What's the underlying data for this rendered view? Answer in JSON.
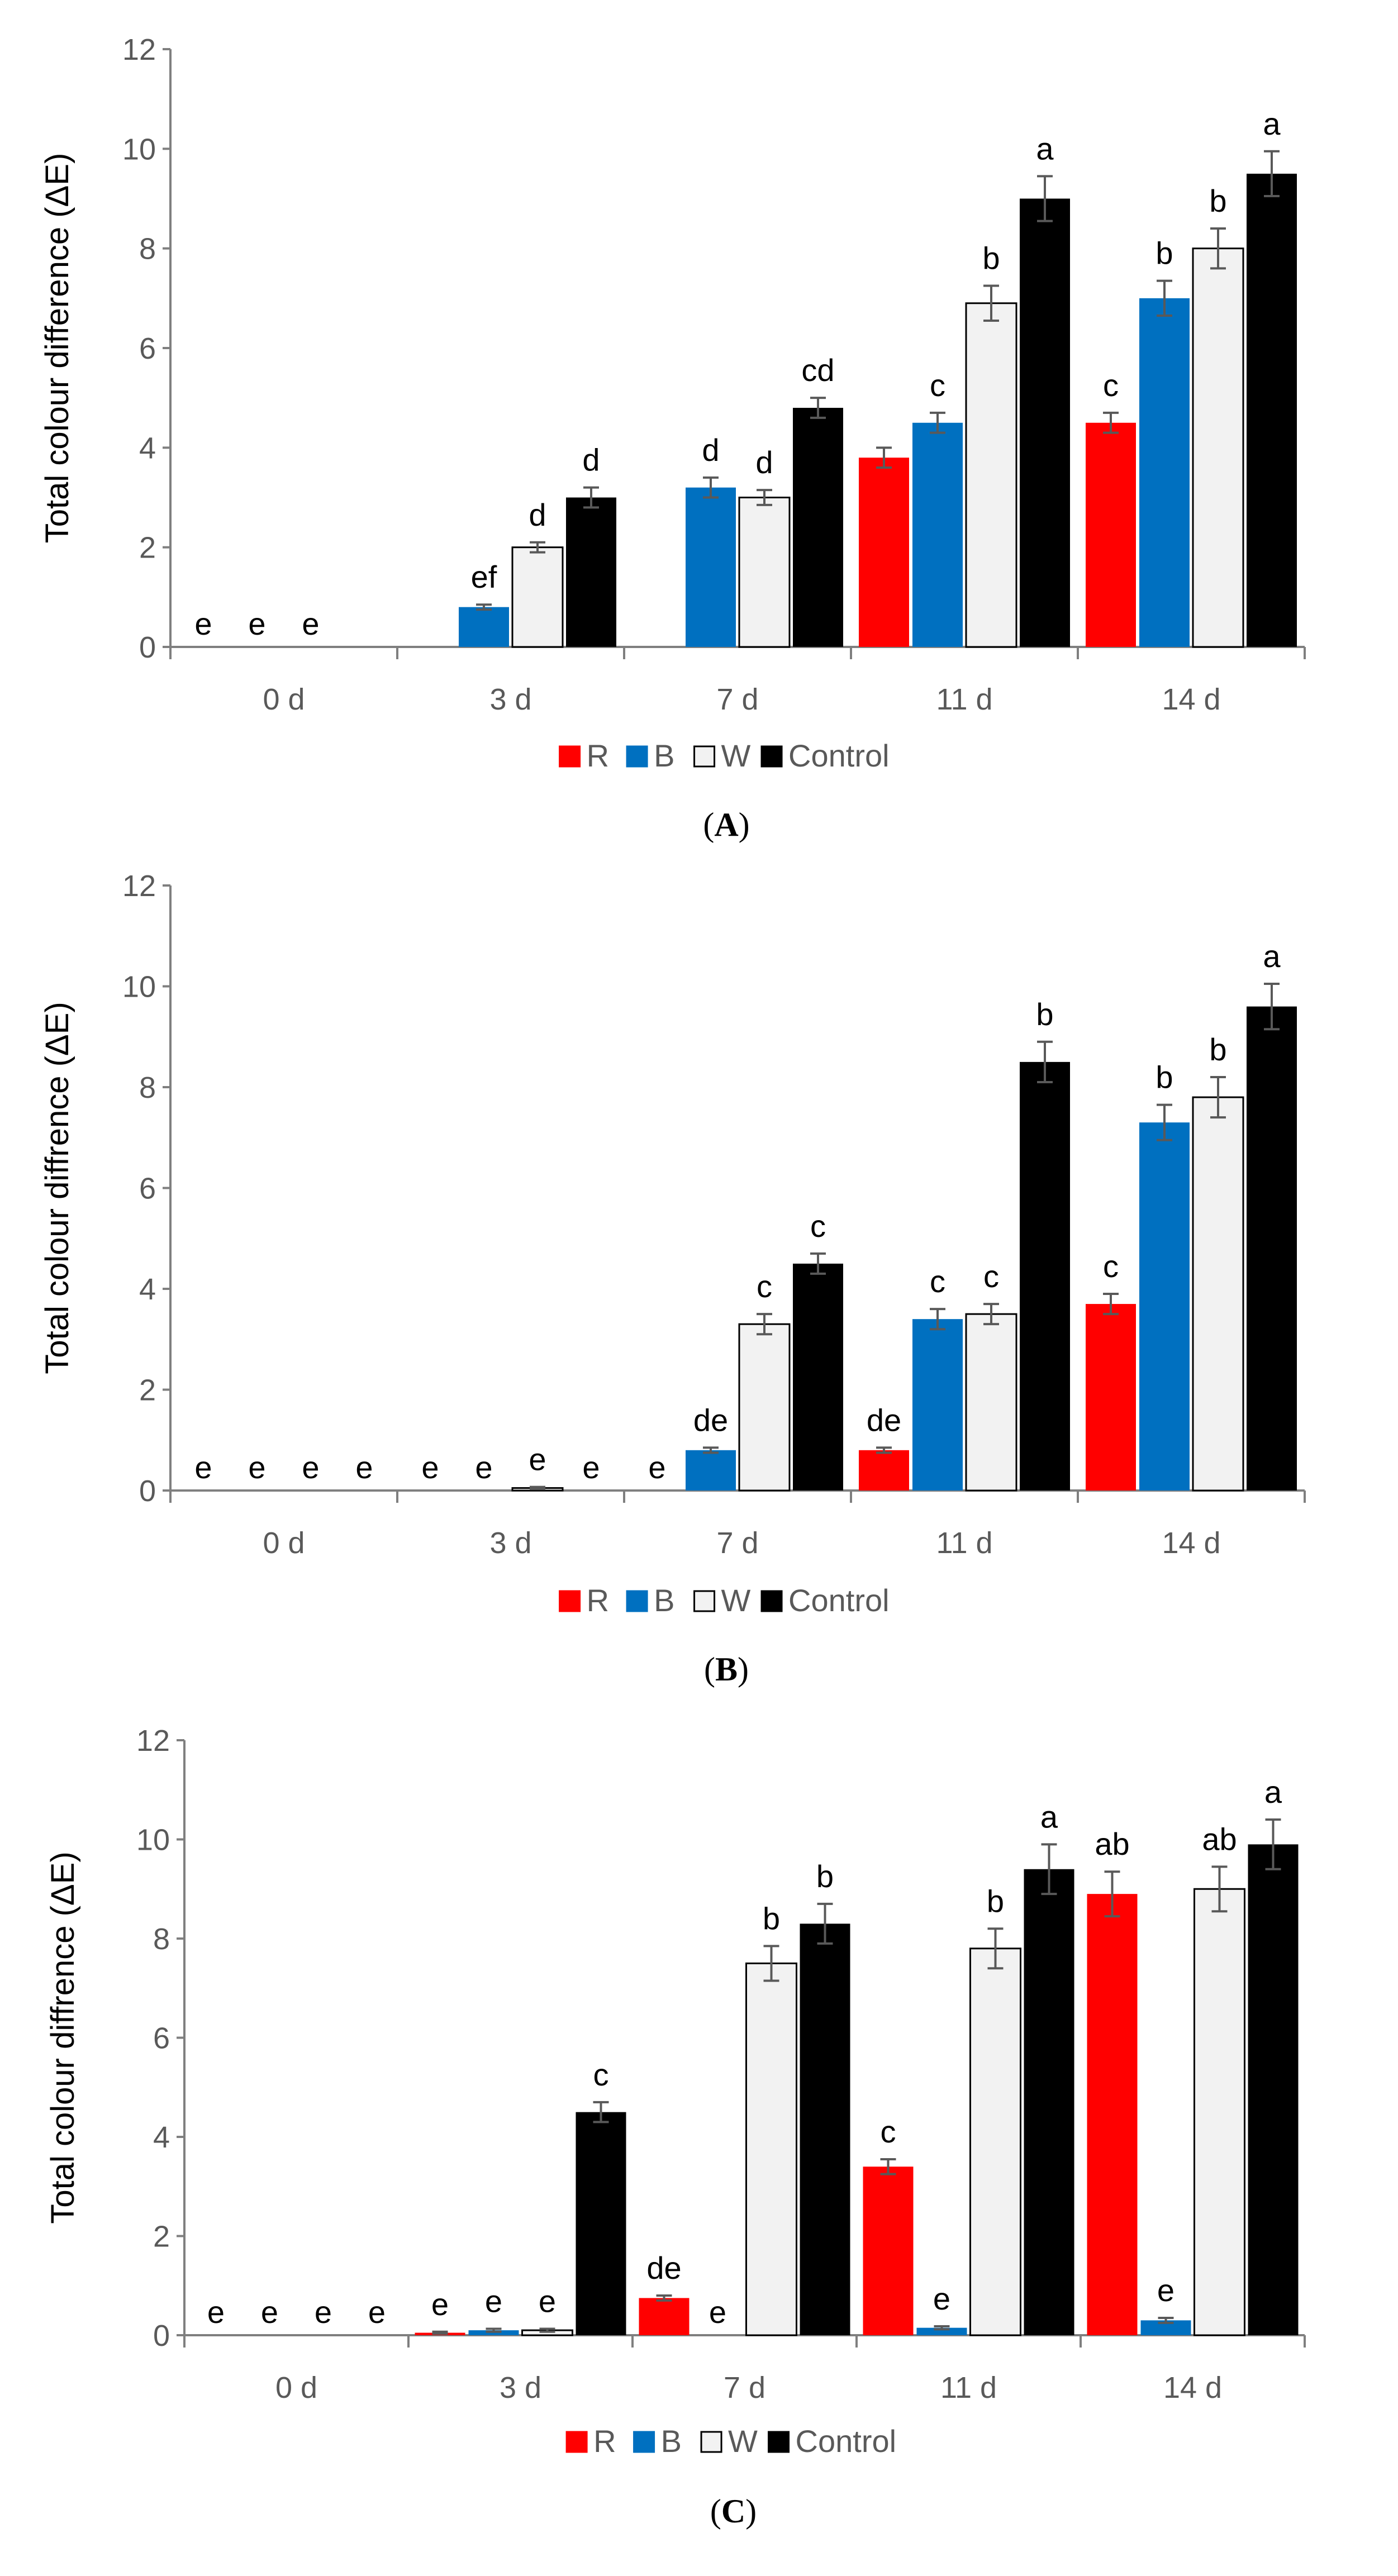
{
  "colors": {
    "R": "#ff0000",
    "B": "#0070c0",
    "W": "#f2f2f2",
    "Control": "#000000",
    "axis": "#7f7f7f",
    "tick_text": "#595959",
    "label_text": "#000000",
    "error_bar": "#595959"
  },
  "chart_data": [
    {
      "type": "bar",
      "panel": "A",
      "caption": "(A)",
      "caption_letter": "A",
      "title": "",
      "xlabel": "",
      "ylabel": "Total colour difference  (ΔE)",
      "ylim": [
        0,
        12
      ],
      "yticks": [
        "0",
        "2",
        "4",
        "6",
        "8",
        "10",
        "12"
      ],
      "grid": false,
      "legend_position": "bottom",
      "categories": [
        "0 d",
        "3 d",
        "7 d",
        "11 d",
        "14 d"
      ],
      "series": [
        {
          "name": "R",
          "values": [
            0,
            0,
            0,
            3.8,
            4.5
          ],
          "errors": [
            0,
            0,
            0,
            0.2,
            0.2
          ],
          "letters": [
            "e",
            "",
            "",
            "",
            "c"
          ]
        },
        {
          "name": "B",
          "values": [
            0,
            0.8,
            3.2,
            4.5,
            7.0
          ],
          "errors": [
            0,
            0.05,
            0.2,
            0.2,
            0.35
          ],
          "letters": [
            "e",
            "ef",
            "d",
            "c",
            "b"
          ]
        },
        {
          "name": "W",
          "values": [
            0,
            2.0,
            3.0,
            6.9,
            8.0
          ],
          "errors": [
            0,
            0.1,
            0.15,
            0.35,
            0.4
          ],
          "letters": [
            "e",
            "d",
            "d",
            "b",
            "b"
          ]
        },
        {
          "name": "Control",
          "values": [
            0,
            3.0,
            4.8,
            9.0,
            9.5
          ],
          "errors": [
            0,
            0.2,
            0.2,
            0.45,
            0.45
          ],
          "letters": [
            "",
            "d",
            "cd",
            "a",
            "a"
          ]
        }
      ]
    },
    {
      "type": "bar",
      "panel": "B",
      "caption": "(B)",
      "caption_letter": "B",
      "title": "",
      "xlabel": "",
      "ylabel": "Total colour diffrence (ΔE)",
      "ylim": [
        0,
        12
      ],
      "yticks": [
        "0",
        "2",
        "4",
        "6",
        "8",
        "10",
        "12"
      ],
      "grid": false,
      "legend_position": "bottom",
      "categories": [
        "0 d",
        "3 d",
        "7 d",
        "11 d",
        "14 d"
      ],
      "series": [
        {
          "name": "R",
          "values": [
            0,
            0,
            0,
            0.8,
            3.7
          ],
          "errors": [
            0,
            0,
            0,
            0.05,
            0.2
          ],
          "letters": [
            "e",
            "e",
            "e",
            "de",
            "c"
          ]
        },
        {
          "name": "B",
          "values": [
            0,
            0,
            0.8,
            3.4,
            7.3
          ],
          "errors": [
            0,
            0,
            0.05,
            0.2,
            0.35
          ],
          "letters": [
            "e",
            "e",
            "de",
            "c",
            "b"
          ]
        },
        {
          "name": "W",
          "values": [
            0,
            0.05,
            3.3,
            3.5,
            7.8
          ],
          "errors": [
            0,
            0.02,
            0.2,
            0.2,
            0.4
          ],
          "letters": [
            "e",
            "e",
            "c",
            "c",
            "b"
          ]
        },
        {
          "name": "Control",
          "values": [
            0,
            0,
            4.5,
            8.5,
            9.6
          ],
          "errors": [
            0,
            0,
            0.2,
            0.4,
            0.45
          ],
          "letters": [
            "e",
            "e",
            "c",
            "b",
            "a"
          ]
        }
      ]
    },
    {
      "type": "bar",
      "panel": "C",
      "caption": "(C)",
      "caption_letter": "C",
      "title": "",
      "xlabel": "",
      "ylabel": "Total colour diffrence (ΔE)",
      "ylim": [
        0,
        12
      ],
      "yticks": [
        "0",
        "2",
        "4",
        "6",
        "8",
        "10",
        "12"
      ],
      "grid": false,
      "legend_position": "bottom",
      "categories": [
        "0 d",
        "3 d",
        "7 d",
        "11 d",
        "14 d"
      ],
      "series": [
        {
          "name": "R",
          "values": [
            0,
            0.05,
            0.75,
            3.4,
            8.9
          ],
          "errors": [
            0,
            0.02,
            0.05,
            0.15,
            0.45
          ],
          "letters": [
            "e",
            "e",
            "de",
            "c",
            "ab"
          ]
        },
        {
          "name": "B",
          "values": [
            0,
            0.1,
            0,
            0.15,
            0.3
          ],
          "errors": [
            0,
            0.03,
            0,
            0.03,
            0.05
          ],
          "letters": [
            "e",
            "e",
            "e",
            "e",
            "e"
          ]
        },
        {
          "name": "W",
          "values": [
            0,
            0.1,
            7.5,
            7.8,
            9.0
          ],
          "errors": [
            0,
            0.03,
            0.35,
            0.4,
            0.45
          ],
          "letters": [
            "e",
            "e",
            "b",
            "b",
            "ab"
          ]
        },
        {
          "name": "Control",
          "values": [
            0,
            4.5,
            8.3,
            9.4,
            9.9
          ],
          "errors": [
            0,
            0.2,
            0.4,
            0.5,
            0.5
          ],
          "letters": [
            "e",
            "c",
            "b",
            "a",
            "a"
          ]
        }
      ]
    }
  ]
}
